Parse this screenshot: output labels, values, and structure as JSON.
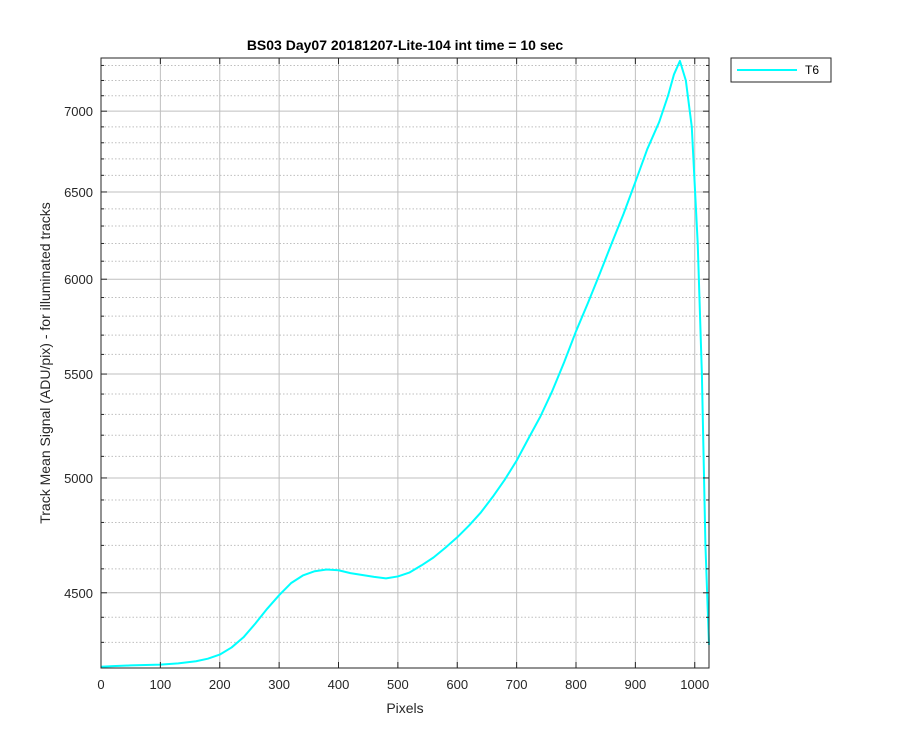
{
  "chart_data": {
    "type": "line",
    "title": "BS03 Day07 20181207-Lite-104 int time = 10 sec",
    "xlabel": "Pixels",
    "ylabel": "Track Mean Signal (ADU/pix) - for illuminated tracks",
    "y_scale": "log",
    "xlim": [
      0,
      1024
    ],
    "ylim": [
      4200,
      7350
    ],
    "x_ticks": [
      0,
      100,
      200,
      300,
      400,
      500,
      600,
      700,
      800,
      900,
      1000
    ],
    "x_tick_labels": [
      "0",
      "100",
      "200",
      "300",
      "400",
      "500",
      "600",
      "700",
      "800",
      "900",
      "1000"
    ],
    "y_ticks": [
      4500,
      5000,
      5500,
      6000,
      6500,
      7000
    ],
    "y_tick_labels": [
      "4500",
      "5000",
      "5500",
      "6000",
      "6500",
      "7000"
    ],
    "grid": true,
    "legend_position": "outside-top-right",
    "series": [
      {
        "name": "T6",
        "color": "#00FFFF",
        "x": [
          0,
          20,
          50,
          100,
          130,
          160,
          180,
          200,
          220,
          240,
          260,
          280,
          300,
          320,
          340,
          360,
          380,
          400,
          420,
          440,
          460,
          480,
          500,
          520,
          540,
          560,
          580,
          600,
          620,
          640,
          660,
          680,
          700,
          720,
          740,
          760,
          780,
          800,
          820,
          840,
          860,
          880,
          900,
          920,
          940,
          955,
          965,
          975,
          985,
          995,
          1005,
          1012,
          1018,
          1024
        ],
        "y": [
          4205,
          4207,
          4210,
          4213,
          4218,
          4226,
          4236,
          4252,
          4280,
          4320,
          4375,
          4435,
          4490,
          4540,
          4572,
          4590,
          4597,
          4594,
          4582,
          4574,
          4566,
          4560,
          4568,
          4585,
          4615,
          4648,
          4690,
          4735,
          4787,
          4845,
          4915,
          4992,
          5080,
          5185,
          5290,
          5415,
          5560,
          5720,
          5870,
          6030,
          6200,
          6370,
          6560,
          6760,
          6930,
          7100,
          7240,
          7330,
          7200,
          6900,
          6200,
          5500,
          4700,
          4290
        ]
      }
    ]
  }
}
